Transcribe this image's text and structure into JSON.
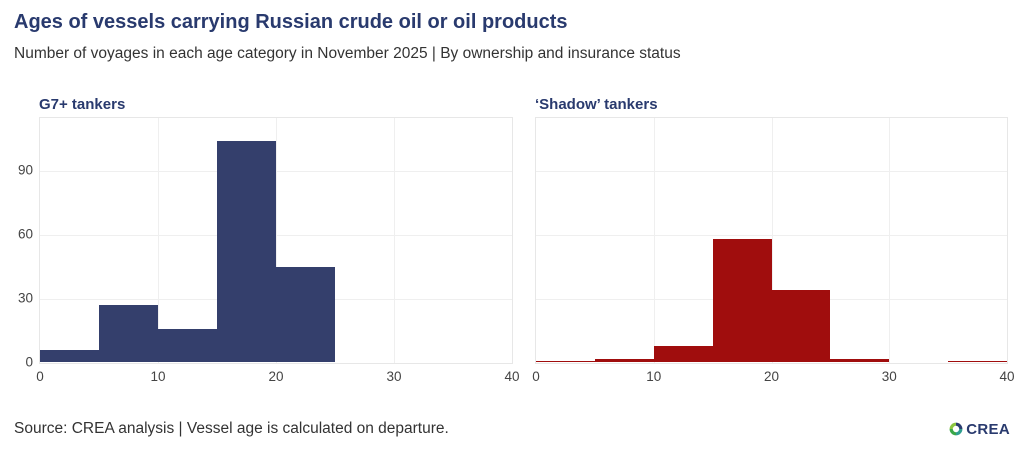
{
  "header": {
    "title": "Ages of vessels carrying Russian crude oil or oil products",
    "subtitle": "Number of voyages in each age category in November 2025 | By ownership and insurance status"
  },
  "footer": {
    "source": "Source: CREA analysis | Vessel age is calculated on departure.",
    "logo_text": "CREA"
  },
  "colors": {
    "navy_text": "#293a6e",
    "g7_bar": "#343f6c",
    "shadow_bar": "#a00d0d",
    "gridline": "#efefef",
    "panel_border": "#e7e7e7",
    "tick_text": "#444444",
    "body_text": "#333333"
  },
  "chart_data": [
    {
      "type": "bar",
      "title": "G7+ tankers",
      "xlabel": "",
      "ylabel": "",
      "bin_width": 5,
      "bin_edges": [
        0,
        5,
        10,
        15,
        20,
        25,
        30,
        35,
        40
      ],
      "categories": [
        "0-5",
        "5-10",
        "10-15",
        "15-20",
        "20-25",
        "25-30",
        "30-35",
        "35-40"
      ],
      "values": [
        6,
        27,
        16,
        104,
        45,
        0,
        0,
        0
      ],
      "x_ticks": [
        0,
        10,
        20,
        30,
        40
      ],
      "y_ticks": [
        0,
        30,
        60,
        90
      ],
      "xlim": [
        0,
        40
      ],
      "ylim": [
        0,
        114.6
      ],
      "grid": true,
      "legend": false,
      "bar_color": "#343f6c",
      "show_y_labels": true
    },
    {
      "type": "bar",
      "title": "‘Shadow’ tankers",
      "xlabel": "",
      "ylabel": "",
      "bin_width": 5,
      "bin_edges": [
        0,
        5,
        10,
        15,
        20,
        25,
        30,
        35,
        40
      ],
      "categories": [
        "0-5",
        "5-10",
        "10-15",
        "15-20",
        "20-25",
        "25-30",
        "30-35",
        "35-40"
      ],
      "values": [
        1,
        2,
        8,
        58,
        34,
        2,
        0,
        1
      ],
      "x_ticks": [
        0,
        10,
        20,
        30,
        40
      ],
      "y_ticks": [
        0,
        30,
        60,
        90
      ],
      "xlim": [
        0,
        40
      ],
      "ylim": [
        0,
        114.6
      ],
      "grid": true,
      "legend": false,
      "bar_color": "#a00d0d",
      "show_y_labels": false
    }
  ]
}
